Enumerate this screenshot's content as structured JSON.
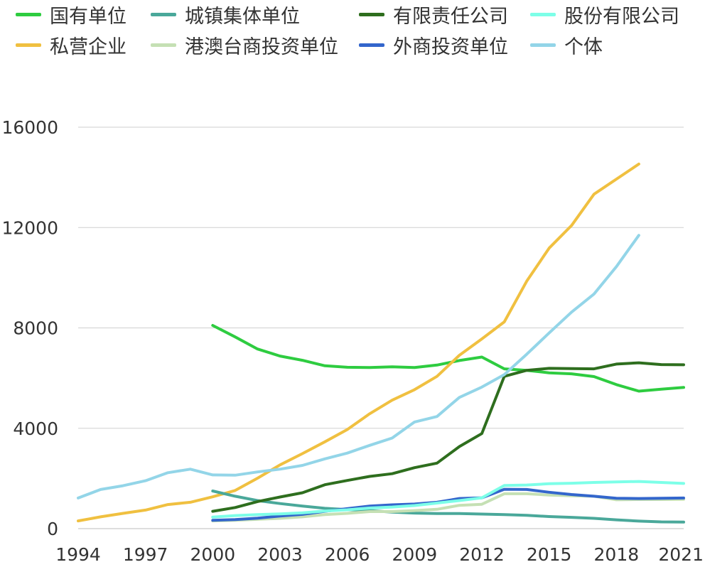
{
  "chart_data": {
    "type": "line",
    "title": "",
    "xlabel": "",
    "ylabel": "",
    "x": [
      1994,
      1995,
      1996,
      1997,
      1998,
      1999,
      2000,
      2001,
      2002,
      2003,
      2004,
      2005,
      2006,
      2007,
      2008,
      2009,
      2010,
      2011,
      2012,
      2013,
      2014,
      2015,
      2016,
      2017,
      2018,
      2019,
      2020,
      2021
    ],
    "xticks": [
      1994,
      1997,
      2000,
      2003,
      2006,
      2009,
      2012,
      2015,
      2018,
      2021
    ],
    "yticks": [
      0,
      4000,
      8000,
      12000,
      16000
    ],
    "ylim": [
      0,
      16000
    ],
    "xlim": [
      1994,
      2021
    ],
    "grid": true,
    "legend_position": "top",
    "series": [
      {
        "name": "国有单位",
        "color": "#2ecc40",
        "values": [
          null,
          null,
          null,
          null,
          null,
          null,
          8100,
          7640,
          7160,
          6880,
          6710,
          6490,
          6430,
          6420,
          6450,
          6420,
          6520,
          6700,
          6840,
          6370,
          6310,
          6210,
          6170,
          6060,
          5740,
          5480,
          5560,
          5630
        ]
      },
      {
        "name": "私营企业",
        "color": "#f0c040",
        "values": [
          310,
          470,
          610,
          740,
          960,
          1050,
          1270,
          1520,
          2010,
          2540,
          2990,
          3460,
          3950,
          4580,
          5120,
          5540,
          6070,
          6910,
          7560,
          8240,
          9860,
          11180,
          12080,
          13330,
          13930,
          14530,
          null,
          null
        ]
      },
      {
        "name": "城镇集体单位",
        "color": "#4aa89a",
        "values": [
          null,
          null,
          null,
          null,
          null,
          null,
          1500,
          1290,
          1120,
          1000,
          900,
          810,
          760,
          720,
          660,
          620,
          600,
          600,
          580,
          560,
          530,
          480,
          450,
          410,
          350,
          300,
          270,
          260
        ]
      },
      {
        "name": "港澳台商投资单位",
        "color": "#c5e0b4",
        "values": [
          null,
          null,
          null,
          null,
          null,
          null,
          310,
          330,
          370,
          410,
          470,
          560,
          610,
          680,
          680,
          720,
          770,
          930,
          970,
          1390,
          1390,
          1340,
          1310,
          1290,
          1150,
          1160,
          1160,
          1170
        ]
      },
      {
        "name": "有限责任公司",
        "color": "#2e6e1e",
        "values": [
          null,
          null,
          null,
          null,
          null,
          null,
          690,
          840,
          1080,
          1260,
          1430,
          1750,
          1920,
          2080,
          2190,
          2430,
          2610,
          3270,
          3790,
          6070,
          6310,
          6390,
          6380,
          6370,
          6560,
          6610,
          6540,
          6530
        ]
      },
      {
        "name": "外商投资单位",
        "color": "#3366cc",
        "values": [
          null,
          null,
          null,
          null,
          null,
          null,
          330,
          360,
          420,
          500,
          570,
          690,
          800,
          900,
          950,
          980,
          1050,
          1200,
          1230,
          1570,
          1560,
          1450,
          1360,
          1290,
          1210,
          1200,
          1210,
          1220
        ]
      },
      {
        "name": "股份有限公司",
        "color": "#7dffe8",
        "values": [
          null,
          null,
          null,
          null,
          null,
          null,
          460,
          520,
          560,
          590,
          630,
          700,
          750,
          820,
          860,
          920,
          1020,
          1120,
          1230,
          1720,
          1740,
          1790,
          1810,
          1840,
          1860,
          1880,
          1840,
          1800
        ]
      },
      {
        "name": "个体",
        "color": "#93d5e8",
        "values": [
          1220,
          1560,
          1710,
          1910,
          2230,
          2370,
          2140,
          2130,
          2260,
          2370,
          2520,
          2780,
          3010,
          3320,
          3610,
          4250,
          4470,
          5230,
          5640,
          6140,
          6950,
          7800,
          8630,
          9350,
          10440,
          11690,
          null,
          null
        ]
      }
    ]
  }
}
